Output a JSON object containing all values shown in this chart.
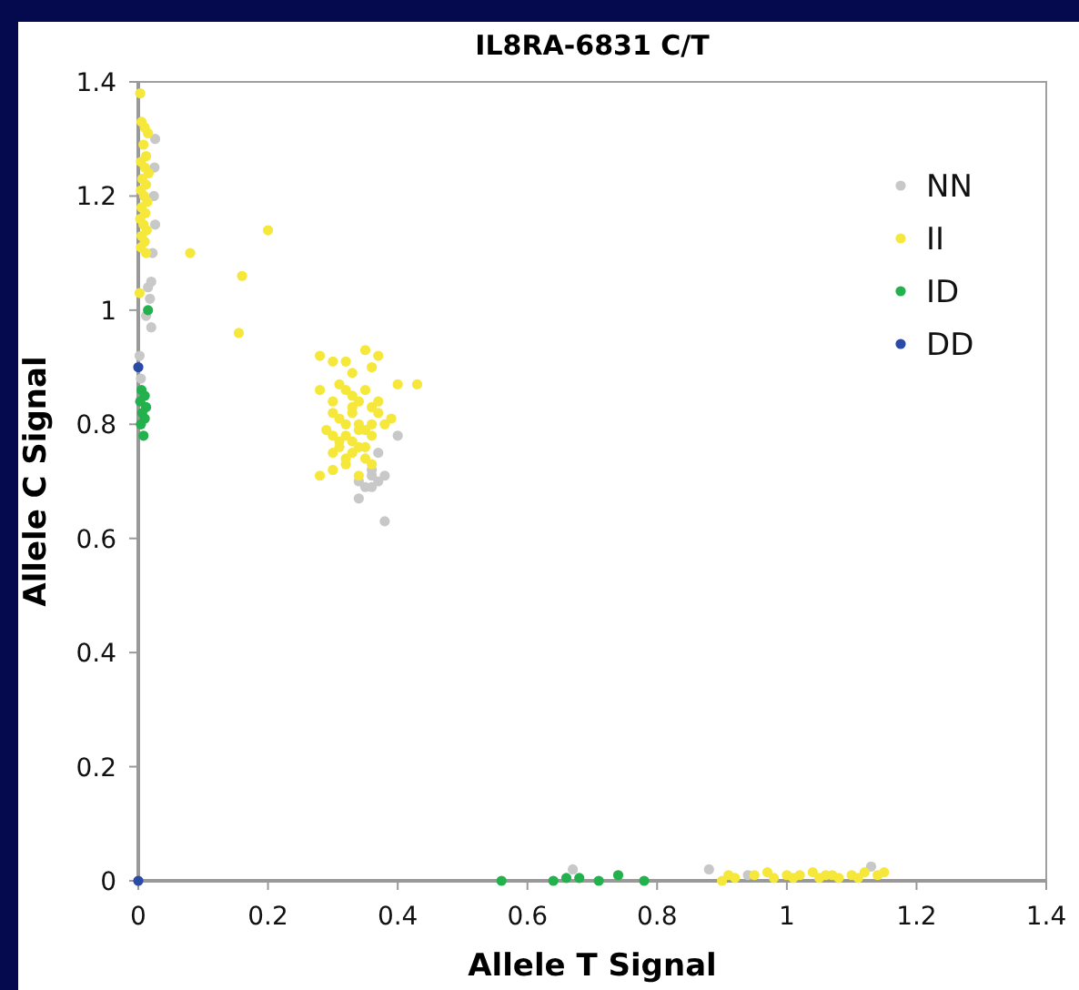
{
  "chart_data": {
    "type": "scatter",
    "title": "IL8RA-6831 C/T",
    "xlabel": "Allele T Signal",
    "ylabel": "Allele C Signal",
    "xlim": [
      0,
      1.4
    ],
    "xticks": [
      0,
      0.2,
      0.4,
      0.6,
      0.8,
      1,
      1.2,
      1.4
    ],
    "ylim": [
      0,
      1.4
    ],
    "yticks": [
      0,
      0.2,
      0.4,
      0.6,
      0.8,
      1,
      1.2,
      1.4
    ],
    "grid": false,
    "legend": "top right",
    "marker": "circle",
    "series": [
      {
        "name": "NN",
        "color": "#c8c8c8",
        "x": [
          0.026,
          0.025,
          0.024,
          0.026,
          0.022,
          0.02,
          0.015,
          0.018,
          0.012,
          0.02,
          0.4,
          0.37,
          0.36,
          0.38,
          0.35,
          0.36,
          0.34,
          0.37,
          0.38,
          0.34,
          0.36,
          0.67,
          0.88,
          0.94,
          1.13,
          0.002,
          0.004
        ],
        "values": [
          1.3,
          1.25,
          1.2,
          1.15,
          1.1,
          1.05,
          1.04,
          1.02,
          0.99,
          0.97,
          0.78,
          0.75,
          0.72,
          0.71,
          0.69,
          0.69,
          0.67,
          0.7,
          0.63,
          0.7,
          0.71,
          0.02,
          0.02,
          0.01,
          0.025,
          0.92,
          0.88
        ]
      },
      {
        "name": "II",
        "color": "#f5e83a",
        "x": [
          0.003,
          0.005,
          0.01,
          0.015,
          0.008,
          0.012,
          0.004,
          0.01,
          0.016,
          0.006,
          0.012,
          0.004,
          0.009,
          0.014,
          0.005,
          0.011,
          0.003,
          0.008,
          0.013,
          0.005,
          0.01,
          0.004,
          0.012,
          0.002,
          0.08,
          0.16,
          0.155,
          0.2,
          0.28,
          0.28,
          0.3,
          0.32,
          0.33,
          0.35,
          0.37,
          0.36,
          0.4,
          0.43,
          0.31,
          0.32,
          0.33,
          0.34,
          0.35,
          0.36,
          0.3,
          0.31,
          0.32,
          0.33,
          0.34,
          0.35,
          0.36,
          0.37,
          0.29,
          0.3,
          0.31,
          0.32,
          0.33,
          0.34,
          0.35,
          0.36,
          0.38,
          0.3,
          0.31,
          0.32,
          0.33,
          0.34,
          0.35,
          0.28,
          0.3,
          0.32,
          0.34,
          0.36,
          0.3,
          0.33,
          0.39,
          0.37,
          0.9,
          0.91,
          0.92,
          0.95,
          0.97,
          0.98,
          1.0,
          1.01,
          1.02,
          1.04,
          1.05,
          1.06,
          1.07,
          1.08,
          1.1,
          1.11,
          1.12,
          1.14,
          1.15
        ],
        "values": [
          1.38,
          1.33,
          1.32,
          1.31,
          1.29,
          1.27,
          1.26,
          1.25,
          1.24,
          1.23,
          1.22,
          1.21,
          1.2,
          1.19,
          1.18,
          1.17,
          1.16,
          1.15,
          1.14,
          1.13,
          1.12,
          1.11,
          1.1,
          1.03,
          1.1,
          1.06,
          0.96,
          1.14,
          0.92,
          0.86,
          0.91,
          0.91,
          0.89,
          0.93,
          0.92,
          0.9,
          0.87,
          0.87,
          0.87,
          0.86,
          0.85,
          0.84,
          0.86,
          0.83,
          0.82,
          0.81,
          0.8,
          0.82,
          0.8,
          0.79,
          0.8,
          0.82,
          0.79,
          0.78,
          0.77,
          0.78,
          0.77,
          0.79,
          0.76,
          0.78,
          0.8,
          0.75,
          0.76,
          0.74,
          0.75,
          0.76,
          0.74,
          0.71,
          0.72,
          0.73,
          0.71,
          0.73,
          0.84,
          0.83,
          0.81,
          0.84,
          0.0,
          0.01,
          0.005,
          0.01,
          0.015,
          0.005,
          0.01,
          0.005,
          0.01,
          0.015,
          0.005,
          0.01,
          0.01,
          0.005,
          0.01,
          0.005,
          0.015,
          0.01,
          0.015
        ]
      },
      {
        "name": "ID",
        "color": "#22b14c",
        "x": [
          0.015,
          0.005,
          0.01,
          0.003,
          0.012,
          0.006,
          0.01,
          0.004,
          0.008,
          0.56,
          0.64,
          0.66,
          0.68,
          0.71,
          0.74,
          0.78
        ],
        "values": [
          1.0,
          0.86,
          0.85,
          0.84,
          0.83,
          0.82,
          0.81,
          0.8,
          0.78,
          0.0,
          0.0,
          0.005,
          0.005,
          0.0,
          0.01,
          0.0
        ]
      },
      {
        "name": "DD",
        "color": "#2a4aa8",
        "x": [
          0.0,
          0.0
        ],
        "values": [
          0.9,
          0.0
        ]
      }
    ]
  }
}
